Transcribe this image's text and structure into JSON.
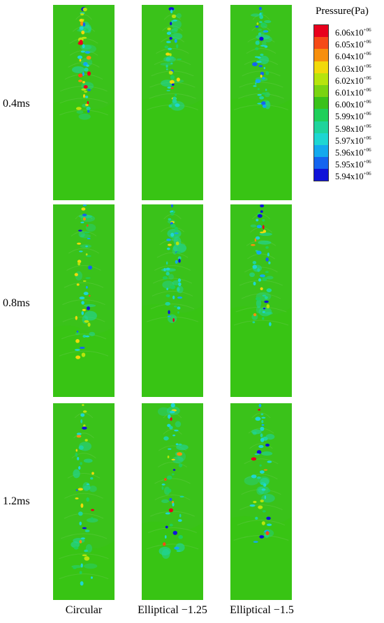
{
  "legend": {
    "title": "Pressure(Pa)",
    "exponent": "+06",
    "entries": [
      {
        "mantissa": "6.06x10",
        "color": "#e8001c"
      },
      {
        "mantissa": "6.05x10",
        "color": "#f54a16"
      },
      {
        "mantissa": "6.04x10",
        "color": "#f78f0d"
      },
      {
        "mantissa": "6.03x10",
        "color": "#f2d90a"
      },
      {
        "mantissa": "6.02x10",
        "color": "#b7e40c"
      },
      {
        "mantissa": "6.01x10",
        "color": "#7ad411"
      },
      {
        "mantissa": "6.00x10",
        "color": "#3ac21a"
      },
      {
        "mantissa": "5.99x10",
        "color": "#1fcf5a"
      },
      {
        "mantissa": "5.98x10",
        "color": "#1fd49c"
      },
      {
        "mantissa": "5.97x10",
        "color": "#1ed6d2"
      },
      {
        "mantissa": "5.96x10",
        "color": "#13a9ee"
      },
      {
        "mantissa": "5.95x10",
        "color": "#1464ef"
      },
      {
        "mantissa": "5.94x10",
        "color": "#1013d8"
      }
    ]
  },
  "rows": [
    {
      "label": "0.4ms"
    },
    {
      "label": "0.8ms"
    },
    {
      "label": "1.2ms"
    }
  ],
  "columns": [
    {
      "label": "Circular"
    },
    {
      "label": "Elliptical −1.25"
    },
    {
      "label": "Elliptical −1.5"
    }
  ],
  "colors": {
    "background_field": "#3ac21a",
    "lower_field": "#38c414"
  }
}
